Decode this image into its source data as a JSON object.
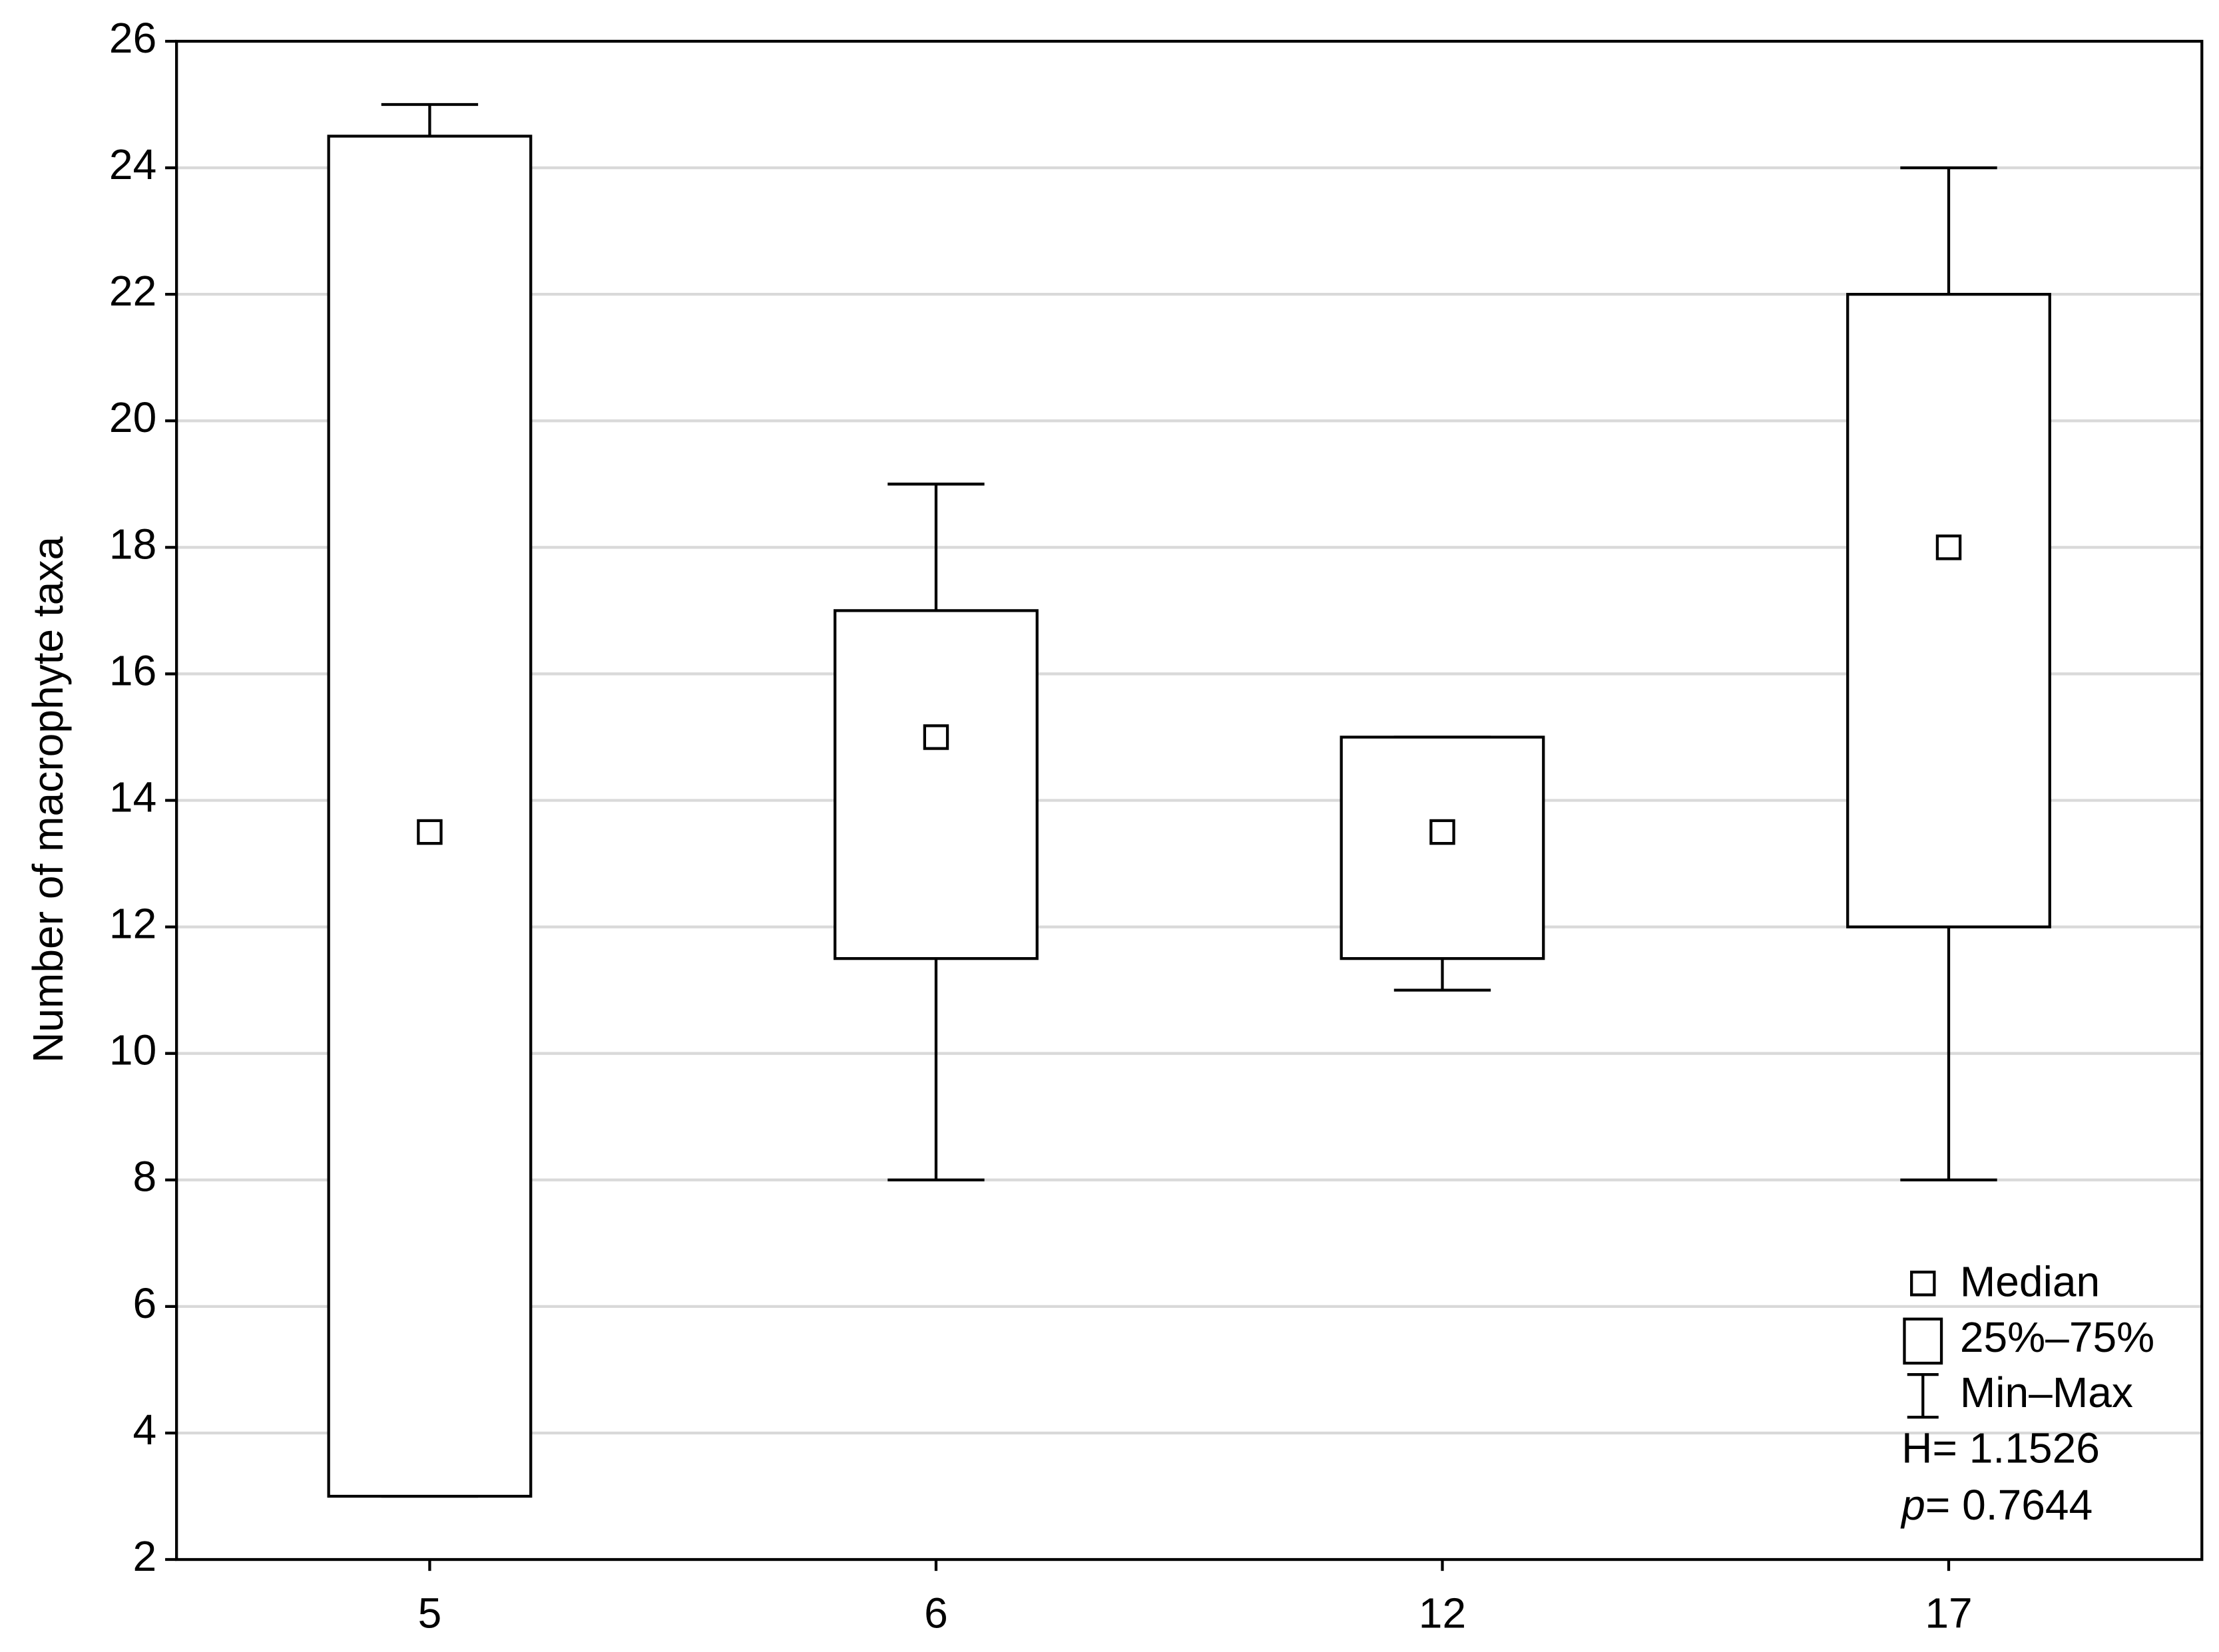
{
  "chart_data": {
    "type": "box",
    "ylabel": "Number of macrophyte taxa",
    "categories": [
      "5",
      "6",
      "12",
      "17"
    ],
    "boxes": [
      {
        "min": 3,
        "q1": 3,
        "median": 13.5,
        "q3": 24.5,
        "max": 25
      },
      {
        "min": 8,
        "q1": 11.5,
        "median": 15,
        "q3": 17,
        "max": 19
      },
      {
        "min": 11,
        "q1": 11.5,
        "median": 13.5,
        "q3": 15,
        "max": 15
      },
      {
        "min": 8,
        "q1": 12,
        "median": 18,
        "q3": 22,
        "max": 24
      }
    ],
    "ylim": [
      2,
      26
    ],
    "yticks": [
      2,
      4,
      6,
      8,
      10,
      12,
      14,
      16,
      18,
      20,
      22,
      24,
      26
    ],
    "grid": true,
    "color": "#000000",
    "legend": [
      "Median",
      "25%–75%",
      "Min–Max"
    ],
    "stat_h": "H= 1.1526",
    "stat_p_symbol": "p",
    "stat_p_value": "= 0.7644"
  }
}
